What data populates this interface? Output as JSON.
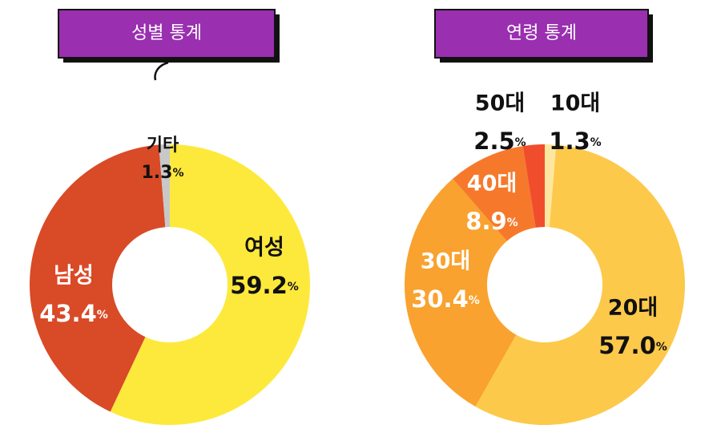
{
  "chart_data": [
    {
      "type": "pie",
      "title": "성별 통계",
      "categories": [
        "여성",
        "남성",
        "기타"
      ],
      "values": [
        59.2,
        43.4,
        1.3
      ],
      "value_labels": [
        "59.2",
        "43.4",
        "1.3"
      ],
      "unit": "%",
      "colors": [
        "#fde93c",
        "#d94a27",
        "#c8c8c8"
      ]
    },
    {
      "type": "pie",
      "title": "연령 통계",
      "categories": [
        "10대",
        "20대",
        "30대",
        "40대",
        "50대"
      ],
      "values": [
        1.3,
        57.0,
        30.4,
        8.9,
        2.5
      ],
      "value_labels": [
        "1.3",
        "57.0",
        "30.4",
        "8.9",
        "2.5"
      ],
      "unit": "%",
      "colors": [
        "#fde7a0",
        "#fdc94b",
        "#f9a22f",
        "#f6792b",
        "#f04d2d"
      ]
    }
  ]
}
